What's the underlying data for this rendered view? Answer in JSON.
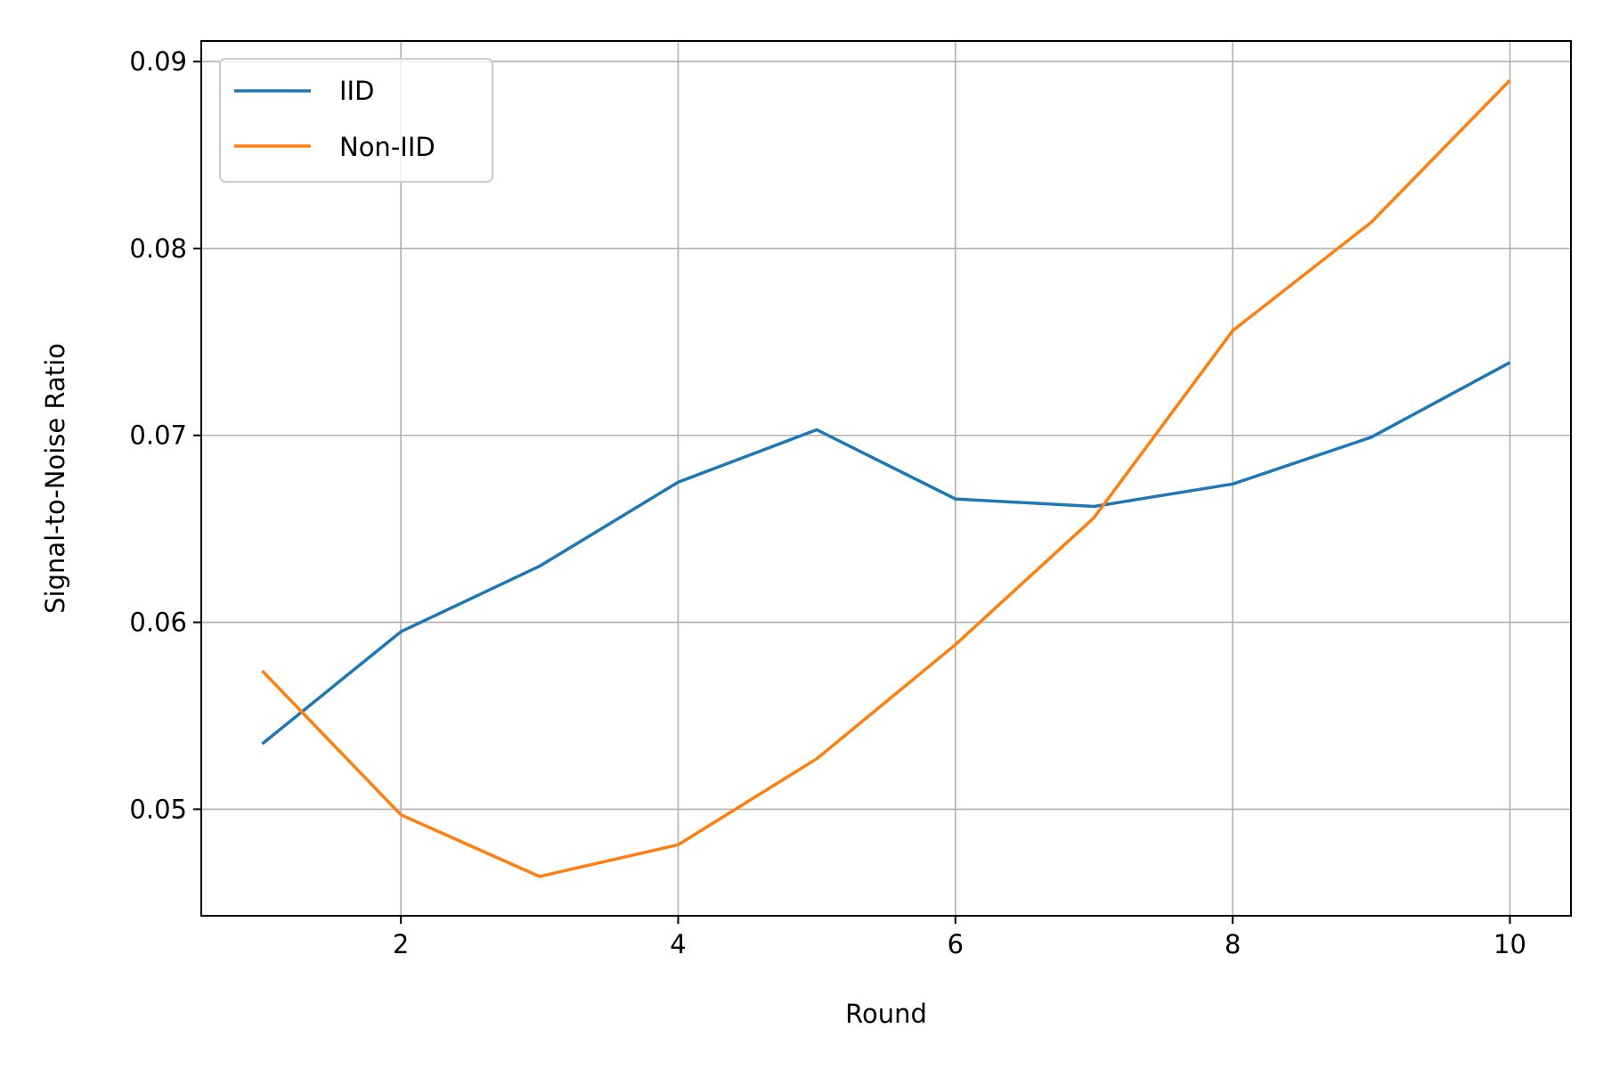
{
  "chart_data": {
    "type": "line",
    "title": "",
    "xlabel": "Round",
    "ylabel": "Signal-to-Noise Ratio",
    "x": [
      1,
      2,
      3,
      4,
      5,
      6,
      7,
      8,
      9,
      10
    ],
    "xlim": [
      0.56,
      10.44
    ],
    "ylim": [
      0.0443,
      0.0911
    ],
    "xticks": [
      2,
      4,
      6,
      8,
      10
    ],
    "xtick_labels": [
      "2",
      "4",
      "6",
      "8",
      "10"
    ],
    "yticks": [
      0.05,
      0.06,
      0.07,
      0.08,
      0.09
    ],
    "ytick_labels": [
      "0.05",
      "0.06",
      "0.07",
      "0.08",
      "0.09"
    ],
    "grid": true,
    "legend_position": "top-left",
    "series": [
      {
        "name": "IID",
        "color": "#1f77b4",
        "values": [
          0.0535,
          0.0595,
          0.063,
          0.0675,
          0.0703,
          0.0666,
          0.0662,
          0.0674,
          0.0699,
          0.0739
        ]
      },
      {
        "name": "Non-IID",
        "color": "#ff7f0e",
        "values": [
          0.0574,
          0.0497,
          0.0464,
          0.0481,
          0.0527,
          0.0588,
          0.0656,
          0.0756,
          0.0814,
          0.089
        ]
      }
    ]
  }
}
